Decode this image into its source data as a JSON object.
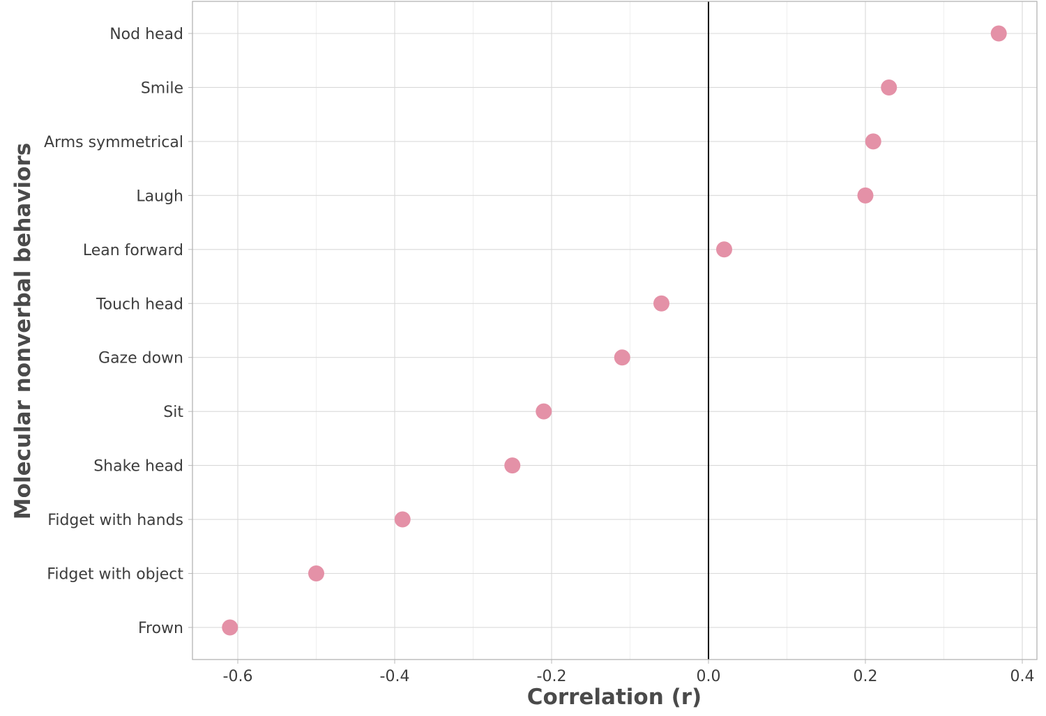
{
  "chart_data": {
    "type": "scatter",
    "title": "",
    "xlabel": "Correlation (r)",
    "ylabel": "Molecular nonverbal behaviors",
    "xlim": [
      -0.66,
      0.42
    ],
    "xticks": [
      -0.6,
      -0.4,
      -0.2,
      0.0,
      0.2,
      0.4
    ],
    "xtick_labels": [
      "-0.6",
      "-0.4",
      "-0.2",
      "0.0",
      "0.2",
      "0.4"
    ],
    "grid": true,
    "reference_line_x": 0.0,
    "point_color": "#e491a7",
    "reference_line_color": "#000000",
    "categories": [
      "Nod head",
      "Smile",
      "Arms symmetrical",
      "Laugh",
      "Lean forward",
      "Touch head",
      "Gaze down",
      "Sit",
      "Shake head",
      "Fidget with hands",
      "Fidget with object",
      "Frown"
    ],
    "values": [
      0.37,
      0.23,
      0.21,
      0.2,
      0.02,
      -0.06,
      -0.11,
      -0.21,
      -0.25,
      -0.39,
      -0.5,
      -0.61
    ]
  }
}
